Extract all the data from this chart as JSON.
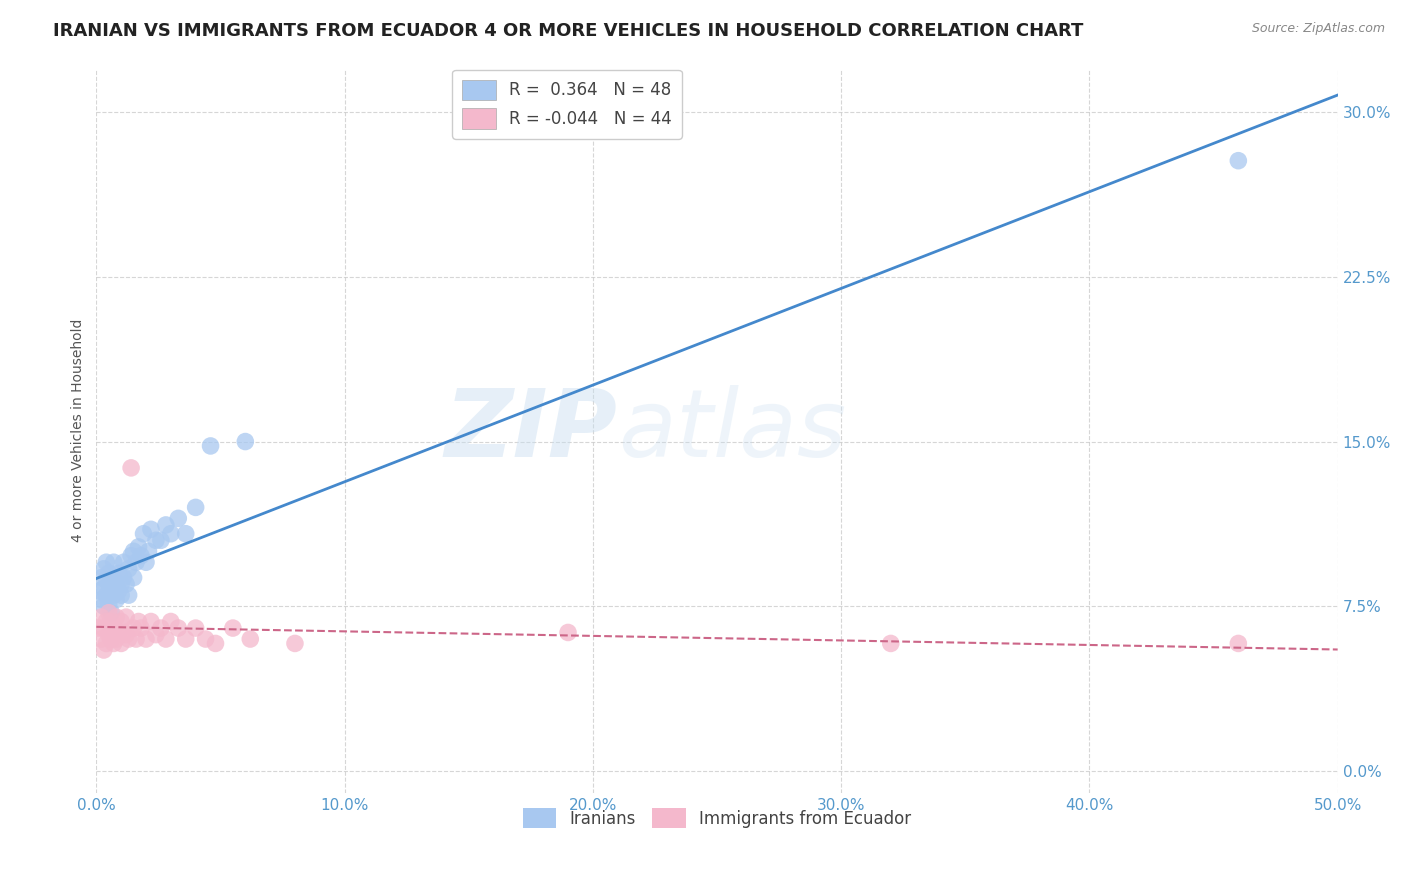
{
  "title": "IRANIAN VS IMMIGRANTS FROM ECUADOR 4 OR MORE VEHICLES IN HOUSEHOLD CORRELATION CHART",
  "source": "Source: ZipAtlas.com",
  "ylabel": "4 or more Vehicles in Household",
  "xlim": [
    0.0,
    0.5
  ],
  "ylim": [
    -0.01,
    0.32
  ],
  "xticks": [
    0.0,
    0.1,
    0.2,
    0.3,
    0.4,
    0.5
  ],
  "xtick_labels": [
    "0.0%",
    "10.0%",
    "20.0%",
    "30.0%",
    "40.0%",
    "50.0%"
  ],
  "yticks": [
    0.0,
    0.075,
    0.15,
    0.225,
    0.3
  ],
  "ytick_labels": [
    "0.0%",
    "7.5%",
    "15.0%",
    "22.5%",
    "30.0%"
  ],
  "blue_color": "#a8c8f0",
  "pink_color": "#f4b8cc",
  "blue_line_color": "#4488cc",
  "pink_line_color": "#cc6688",
  "background_color": "#ffffff",
  "grid_color": "#cccccc",
  "watermark": "ZIPatlas",
  "title_fontsize": 13,
  "axis_label_fontsize": 10,
  "tick_fontsize": 11,
  "blue_R": "0.364",
  "blue_N": "48",
  "pink_R": "-0.044",
  "pink_N": "44",
  "iranians_x": [
    0.001,
    0.002,
    0.002,
    0.003,
    0.003,
    0.003,
    0.004,
    0.004,
    0.004,
    0.005,
    0.005,
    0.005,
    0.006,
    0.006,
    0.007,
    0.007,
    0.007,
    0.008,
    0.008,
    0.009,
    0.009,
    0.01,
    0.01,
    0.011,
    0.011,
    0.012,
    0.013,
    0.013,
    0.014,
    0.015,
    0.015,
    0.016,
    0.017,
    0.018,
    0.019,
    0.02,
    0.021,
    0.022,
    0.024,
    0.026,
    0.028,
    0.03,
    0.033,
    0.036,
    0.04,
    0.046,
    0.06,
    0.46
  ],
  "iranians_y": [
    0.082,
    0.078,
    0.088,
    0.075,
    0.083,
    0.092,
    0.08,
    0.087,
    0.095,
    0.076,
    0.085,
    0.09,
    0.082,
    0.072,
    0.088,
    0.08,
    0.095,
    0.078,
    0.085,
    0.082,
    0.09,
    0.085,
    0.08,
    0.088,
    0.095,
    0.085,
    0.092,
    0.08,
    0.098,
    0.1,
    0.088,
    0.095,
    0.102,
    0.098,
    0.108,
    0.095,
    0.1,
    0.11,
    0.105,
    0.105,
    0.112,
    0.108,
    0.115,
    0.108,
    0.12,
    0.148,
    0.15,
    0.278
  ],
  "ecuador_x": [
    0.001,
    0.002,
    0.002,
    0.003,
    0.003,
    0.004,
    0.004,
    0.005,
    0.005,
    0.006,
    0.006,
    0.007,
    0.007,
    0.008,
    0.008,
    0.009,
    0.01,
    0.01,
    0.011,
    0.012,
    0.012,
    0.013,
    0.014,
    0.015,
    0.016,
    0.017,
    0.018,
    0.02,
    0.022,
    0.024,
    0.026,
    0.028,
    0.03,
    0.033,
    0.036,
    0.04,
    0.044,
    0.048,
    0.055,
    0.062,
    0.08,
    0.19,
    0.32,
    0.46
  ],
  "ecuador_y": [
    0.065,
    0.06,
    0.07,
    0.055,
    0.065,
    0.068,
    0.058,
    0.062,
    0.072,
    0.06,
    0.068,
    0.058,
    0.065,
    0.06,
    0.07,
    0.063,
    0.058,
    0.068,
    0.063,
    0.062,
    0.07,
    0.06,
    0.138,
    0.065,
    0.06,
    0.068,
    0.065,
    0.06,
    0.068,
    0.062,
    0.065,
    0.06,
    0.068,
    0.065,
    0.06,
    0.065,
    0.06,
    0.058,
    0.065,
    0.06,
    0.058,
    0.063,
    0.058,
    0.058
  ]
}
